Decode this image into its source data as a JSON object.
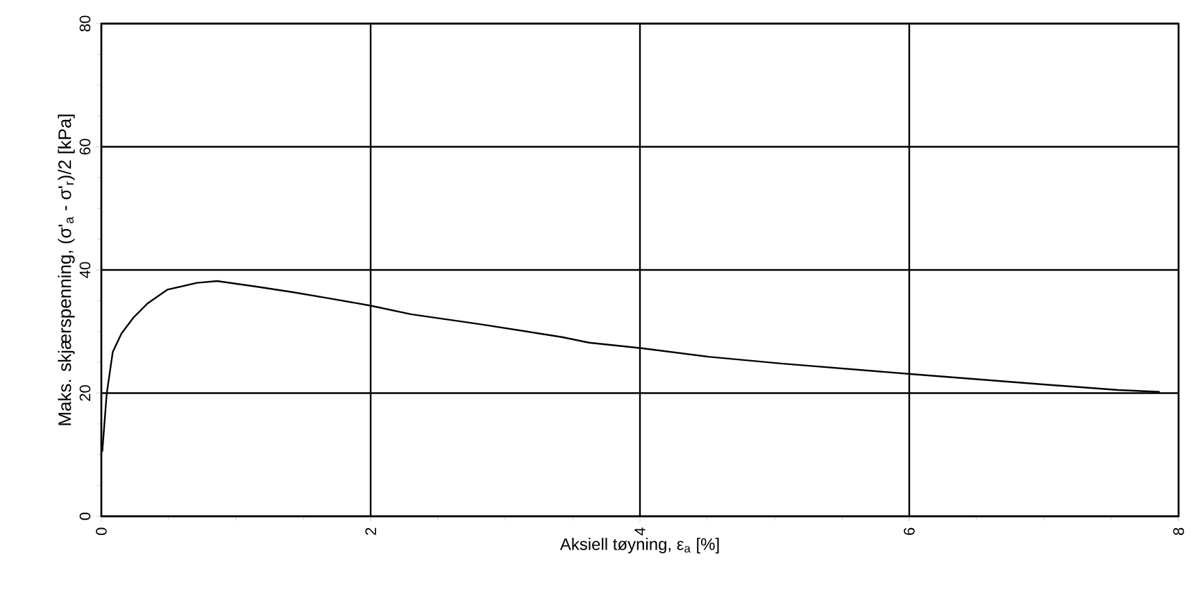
{
  "chart_data": {
    "type": "line",
    "xlabel": "Aksiell tøyning, ε$_{a}$ [%]",
    "ylabel": "Maks. skjærspenning, (σ'$_{a}$ - σ'$_{r}$)/2  [kPa]",
    "x": [
      0.007,
      0.04,
      0.085,
      0.15,
      0.24,
      0.34,
      0.49,
      0.71,
      0.86,
      1.15,
      1.42,
      1.69,
      2.0,
      2.3,
      2.81,
      3.42,
      3.62,
      4.01,
      4.51,
      5.05,
      6.01,
      6.88,
      7.55,
      7.86
    ],
    "series": [
      {
        "color": "#000000",
        "values": [
          10.5,
          19.9,
          26.7,
          29.7,
          32.3,
          34.5,
          36.8,
          37.9,
          38.2,
          37.3,
          36.4,
          35.4,
          34.2,
          32.8,
          31.2,
          29.1,
          28.2,
          27.3,
          25.9,
          24.8,
          23.1,
          21.6,
          20.5,
          20.2
        ]
      }
    ],
    "xlim": [
      0,
      8
    ],
    "ylim": [
      0,
      80
    ],
    "xticks": [
      0,
      2,
      4,
      6,
      8
    ],
    "yticks": [
      0,
      20,
      40,
      60,
      80
    ],
    "grid": true,
    "marker": "none",
    "line_style": "solid"
  }
}
